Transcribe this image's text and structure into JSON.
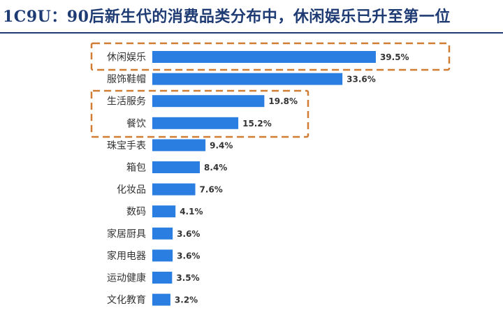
{
  "title": "1C9U：90后新生代的消费品类分布中，休闲娱乐已升至第一位",
  "chart_data": {
    "type": "bar",
    "orientation": "horizontal",
    "categories": [
      "休闲娱乐",
      "服饰鞋帽",
      "生活服务",
      "餐饮",
      "珠宝手表",
      "箱包",
      "化妆品",
      "数码",
      "家居厨具",
      "家用电器",
      "运动健康",
      "文化教育"
    ],
    "values": [
      39.5,
      33.6,
      19.8,
      15.2,
      9.4,
      8.4,
      7.6,
      4.1,
      3.6,
      3.6,
      3.5,
      3.2
    ],
    "value_labels": [
      "39.5%",
      "33.6%",
      "19.8%",
      "15.2%",
      "9.4%",
      "8.4%",
      "7.6%",
      "4.1%",
      "3.6%",
      "3.6%",
      "3.5%",
      "3.2%"
    ],
    "xlim": [
      0,
      40
    ],
    "grid": false,
    "highlight_groups": [
      [
        "休闲娱乐"
      ],
      [
        "生活服务",
        "餐饮"
      ]
    ],
    "colors": {
      "bar": "#2a7de1",
      "highlight": "#d27b33",
      "title": "#1f3b73"
    }
  }
}
